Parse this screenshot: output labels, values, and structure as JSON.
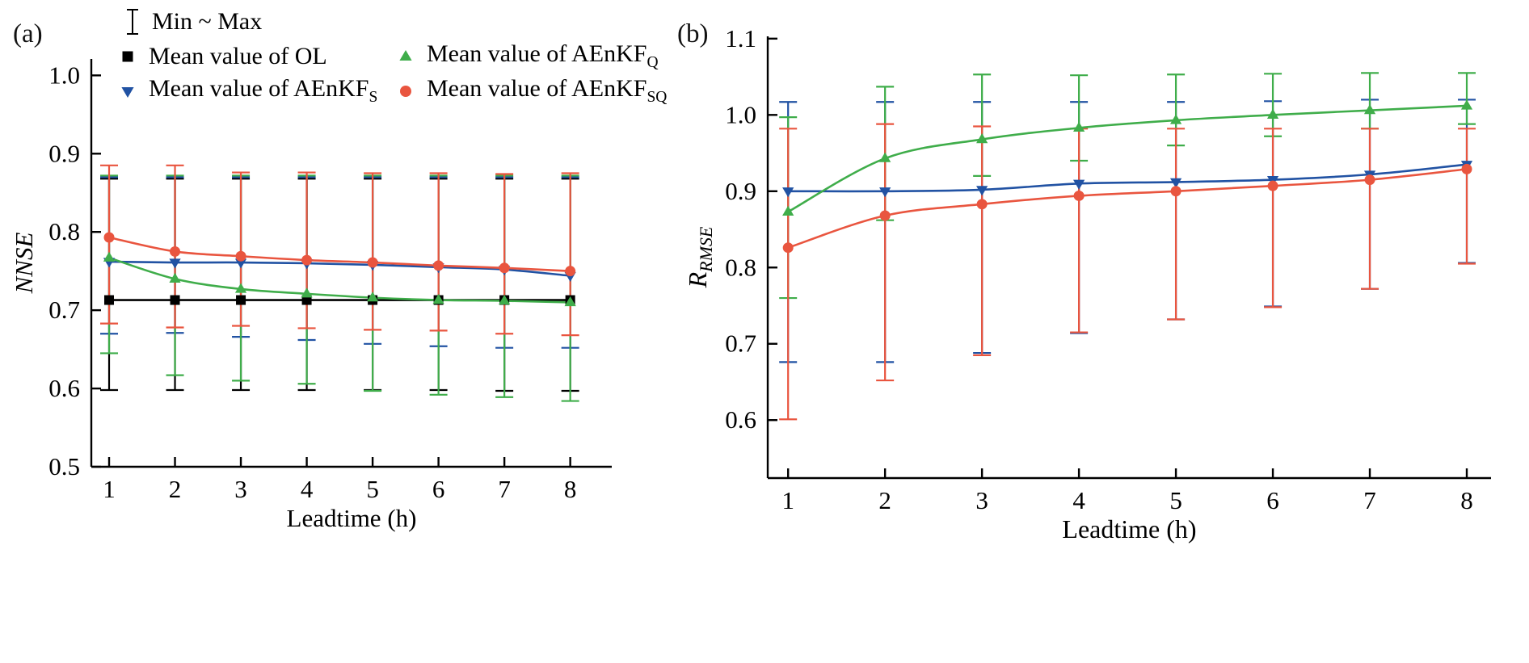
{
  "figure": {
    "background": "#ffffff"
  },
  "legend": {
    "position": "top-left-inside-panel-a",
    "minmax_label": "Min ~ Max",
    "items": [
      {
        "id": "ol",
        "label_main": "Mean value of OL",
        "label_sub": "",
        "marker": "square",
        "color": "#000000"
      },
      {
        "id": "aenkf-q",
        "label_main": "Mean value of AEnKF",
        "label_sub": "Q",
        "marker": "triangle-up",
        "color": "#3fad4a"
      },
      {
        "id": "aenkf-s",
        "label_main": "Mean value of AEnKF",
        "label_sub": "S",
        "marker": "triangle-down",
        "color": "#2152a3"
      },
      {
        "id": "aenkf-sq",
        "label_main": "Mean value of AEnKF",
        "label_sub": "SQ",
        "marker": "circle",
        "color": "#e9553f"
      }
    ]
  },
  "chart_data": [
    {
      "id": "a",
      "type": "line",
      "panel_label": "(a)",
      "xlabel": "Leadtime (h)",
      "ylabel": "NNSE",
      "ylabel_sub": "",
      "grid": false,
      "legend_position": "top-left-inside",
      "x": [
        1,
        2,
        3,
        4,
        5,
        6,
        7,
        8
      ],
      "xlim": [
        0.73,
        8.63
      ],
      "ylim": [
        0.5,
        1.021
      ],
      "yticks": [
        0.5,
        0.6,
        0.7,
        0.8,
        0.9,
        1.0
      ],
      "series": [
        {
          "name": "OL",
          "marker": "square",
          "color": "#000000",
          "values": [
            0.713,
            0.713,
            0.713,
            0.713,
            0.713,
            0.713,
            0.713,
            0.713
          ],
          "min": [
            0.598,
            0.598,
            0.598,
            0.598,
            0.598,
            0.598,
            0.597,
            0.597
          ],
          "max": [
            0.868,
            0.868,
            0.868,
            0.868,
            0.868,
            0.868,
            0.868,
            0.868
          ]
        },
        {
          "name": "AEnKF_S",
          "marker": "triangle-down",
          "color": "#2152a3",
          "values": [
            0.762,
            0.761,
            0.761,
            0.76,
            0.758,
            0.755,
            0.752,
            0.744
          ],
          "min": [
            0.67,
            0.671,
            0.666,
            0.662,
            0.657,
            0.654,
            0.652,
            0.652
          ],
          "max": [
            0.87,
            0.87,
            0.87,
            0.87,
            0.87,
            0.87,
            0.87,
            0.87
          ]
        },
        {
          "name": "AEnKF_Q",
          "marker": "triangle-up",
          "color": "#3fad4a",
          "values": [
            0.767,
            0.74,
            0.727,
            0.721,
            0.716,
            0.713,
            0.712,
            0.71
          ],
          "min": [
            0.645,
            0.617,
            0.61,
            0.606,
            0.597,
            0.592,
            0.589,
            0.584
          ],
          "max": [
            0.872,
            0.872,
            0.872,
            0.872,
            0.872,
            0.872,
            0.872,
            0.872
          ]
        },
        {
          "name": "AEnKF_SQ",
          "marker": "circle",
          "color": "#e9553f",
          "values": [
            0.793,
            0.775,
            0.769,
            0.764,
            0.761,
            0.757,
            0.754,
            0.75
          ],
          "min": [
            0.683,
            0.678,
            0.68,
            0.677,
            0.675,
            0.674,
            0.67,
            0.668
          ],
          "max": [
            0.885,
            0.885,
            0.876,
            0.876,
            0.875,
            0.875,
            0.874,
            0.875
          ]
        }
      ]
    },
    {
      "id": "b",
      "type": "line",
      "panel_label": "(b)",
      "xlabel": "Leadtime (h)",
      "ylabel": "R",
      "ylabel_sub": "RMSE",
      "grid": false,
      "x": [
        1,
        2,
        3,
        4,
        5,
        6,
        7,
        8
      ],
      "xlim": [
        0.79,
        8.25
      ],
      "ylim": [
        0.524,
        1.103
      ],
      "yticks": [
        0.6,
        0.7,
        0.8,
        0.9,
        1.0,
        1.1
      ],
      "series": [
        {
          "name": "AEnKF_S",
          "marker": "triangle-down",
          "color": "#2152a3",
          "values": [
            0.9,
            0.9,
            0.902,
            0.91,
            0.912,
            0.915,
            0.922,
            0.935
          ],
          "min": [
            0.676,
            0.676,
            0.688,
            0.714,
            0.732,
            0.749,
            0.772,
            0.806
          ],
          "max": [
            1.017,
            1.017,
            1.017,
            1.017,
            1.017,
            1.018,
            1.02,
            1.02
          ]
        },
        {
          "name": "AEnKF_Q",
          "marker": "triangle-up",
          "color": "#3fad4a",
          "values": [
            0.873,
            0.943,
            0.968,
            0.983,
            0.993,
            1.0,
            1.006,
            1.012
          ],
          "min": [
            0.76,
            0.862,
            0.92,
            0.94,
            0.96,
            0.972,
            0.982,
            0.988
          ],
          "max": [
            0.997,
            1.037,
            1.053,
            1.052,
            1.053,
            1.054,
            1.055,
            1.055
          ]
        },
        {
          "name": "AEnKF_SQ",
          "marker": "circle",
          "color": "#e9553f",
          "values": [
            0.826,
            0.868,
            0.883,
            0.894,
            0.9,
            0.907,
            0.915,
            0.929
          ],
          "min": [
            0.601,
            0.652,
            0.685,
            0.715,
            0.732,
            0.748,
            0.772,
            0.805
          ],
          "max": [
            0.982,
            0.988,
            0.985,
            0.982,
            0.982,
            0.982,
            0.982,
            0.982
          ]
        }
      ]
    }
  ]
}
